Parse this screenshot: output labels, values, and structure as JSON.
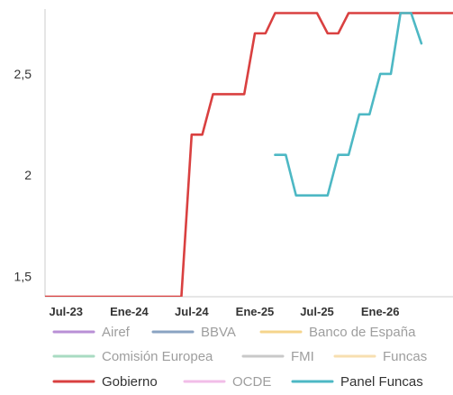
{
  "chart_data": {
    "type": "line",
    "ylim": [
      1.4,
      2.82
    ],
    "xlim": [
      "2023-05-01",
      "2026-08-01"
    ],
    "yticks": [
      {
        "value": 1.5,
        "label": "1,5"
      },
      {
        "value": 2,
        "label": "2"
      },
      {
        "value": 2.5,
        "label": "2,5"
      }
    ],
    "xticks": [
      {
        "date": "2023-07-01",
        "label": "Jul-23"
      },
      {
        "date": "2024-01-01",
        "label": "Ene-24"
      },
      {
        "date": "2024-07-01",
        "label": "Jul-24"
      },
      {
        "date": "2025-01-01",
        "label": "Ene-25"
      },
      {
        "date": "2025-07-01",
        "label": "Jul-25"
      },
      {
        "date": "2026-01-01",
        "label": "Ene-26"
      }
    ],
    "grid": false,
    "legend_position": "bottom",
    "legend": [
      {
        "name": "Airef",
        "color": "#b98fd6",
        "active": false,
        "row": 0
      },
      {
        "name": "BBVA",
        "color": "#8aa3c2",
        "active": false,
        "row": 0
      },
      {
        "name": "Banco de España",
        "color": "#f5d58c",
        "active": false,
        "row": 0
      },
      {
        "name": "Comisión Europea",
        "color": "#a8dbc2",
        "active": false,
        "row": 1
      },
      {
        "name": "FMI",
        "color": "#c9c9c9",
        "active": false,
        "row": 1
      },
      {
        "name": "Funcas",
        "color": "#f7dfb0",
        "active": false,
        "row": 1
      },
      {
        "name": "Gobierno",
        "color": "#d94040",
        "active": true,
        "row": 2
      },
      {
        "name": "OCDE",
        "color": "#f2bde8",
        "active": false,
        "row": 2
      },
      {
        "name": "Panel Funcas",
        "color": "#4db8c4",
        "active": true,
        "row": 2
      }
    ],
    "series": [
      {
        "name": "Gobierno",
        "color": "#d94040",
        "points": [
          [
            "2023-05-01",
            1.4
          ],
          [
            "2024-06-01",
            1.4
          ],
          [
            "2024-07-01",
            2.2
          ],
          [
            "2024-08-01",
            2.2
          ],
          [
            "2024-09-01",
            2.4
          ],
          [
            "2024-10-01",
            2.4
          ],
          [
            "2024-11-01",
            2.4
          ],
          [
            "2024-12-01",
            2.4
          ],
          [
            "2025-01-01",
            2.7
          ],
          [
            "2025-02-01",
            2.7
          ],
          [
            "2025-03-01",
            2.8
          ],
          [
            "2025-04-01",
            2.8
          ],
          [
            "2025-05-01",
            2.8
          ],
          [
            "2025-06-01",
            2.8
          ],
          [
            "2025-07-01",
            2.8
          ],
          [
            "2025-08-01",
            2.7
          ],
          [
            "2025-09-01",
            2.7
          ],
          [
            "2025-10-01",
            2.8
          ],
          [
            "2025-11-01",
            2.8
          ],
          [
            "2025-12-01",
            2.8
          ],
          [
            "2026-01-01",
            2.8
          ],
          [
            "2026-02-01",
            2.8
          ],
          [
            "2026-03-01",
            2.8
          ],
          [
            "2026-04-01",
            2.8
          ],
          [
            "2026-05-01",
            2.8
          ],
          [
            "2026-06-01",
            2.8
          ],
          [
            "2026-07-01",
            2.8
          ],
          [
            "2026-08-01",
            2.8
          ]
        ]
      },
      {
        "name": "Panel Funcas",
        "color": "#4db8c4",
        "points": [
          [
            "2025-03-01",
            2.1
          ],
          [
            "2025-04-01",
            2.1
          ],
          [
            "2025-05-01",
            1.9
          ],
          [
            "2025-06-01",
            1.9
          ],
          [
            "2025-07-01",
            1.9
          ],
          [
            "2025-08-01",
            1.9
          ],
          [
            "2025-09-01",
            2.1
          ],
          [
            "2025-10-01",
            2.1
          ],
          [
            "2025-11-01",
            2.3
          ],
          [
            "2025-12-01",
            2.3
          ],
          [
            "2026-01-01",
            2.5
          ],
          [
            "2026-02-01",
            2.5
          ],
          [
            "2026-03-01",
            2.8
          ],
          [
            "2026-04-01",
            2.8
          ],
          [
            "2026-05-01",
            2.65
          ]
        ]
      }
    ]
  }
}
